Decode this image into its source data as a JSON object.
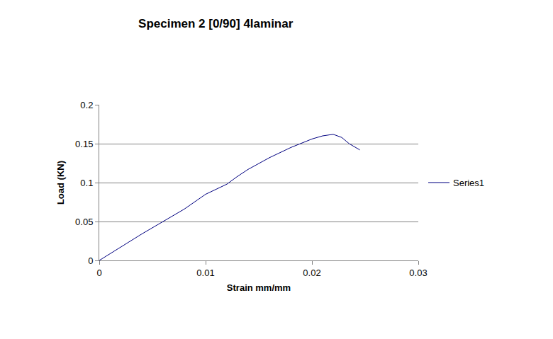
{
  "chart_data": {
    "type": "line",
    "title": "Specimen 2 [0/90] 4laminar",
    "x_label": "Strain mm/mm",
    "y_label": "Load (KN)",
    "series": [
      {
        "name": "Series1",
        "color": "#000080",
        "x": [
          0,
          0.002,
          0.004,
          0.006,
          0.008,
          0.01,
          0.012,
          0.013,
          0.014,
          0.016,
          0.018,
          0.02,
          0.021,
          0.022,
          0.0228,
          0.0235,
          0.0245
        ],
        "values": [
          0,
          0.017,
          0.034,
          0.05,
          0.066,
          0.085,
          0.098,
          0.108,
          0.117,
          0.132,
          0.145,
          0.156,
          0.16,
          0.162,
          0.158,
          0.15,
          0.142
        ]
      }
    ],
    "xlim": [
      0,
      0.03
    ],
    "xticks": [
      0,
      0.01,
      0.02,
      0.03
    ],
    "ylim": [
      0,
      0.2
    ],
    "yticks": [
      0,
      0.05,
      0.1,
      0.15,
      0.2
    ],
    "grid": true,
    "legend": "right"
  }
}
